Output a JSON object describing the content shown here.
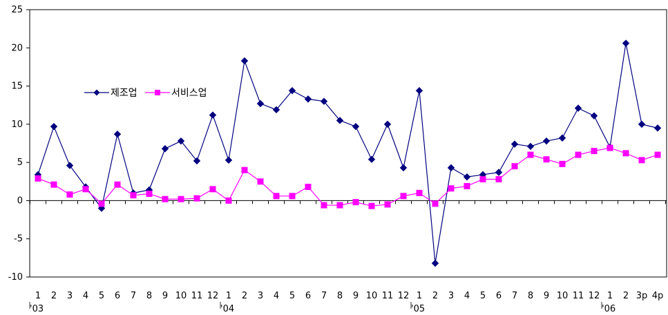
{
  "chart_data": {
    "type": "line",
    "title": "",
    "xlabel": "",
    "ylabel": "",
    "ylim": [
      -10,
      25
    ],
    "yticks": [
      -10,
      -5,
      0,
      5,
      10,
      15,
      20,
      25
    ],
    "categories": [
      "1",
      "2",
      "3",
      "4",
      "5",
      "6",
      "7",
      "8",
      "9",
      "10",
      "11",
      "12",
      "1",
      "2",
      "3",
      "4",
      "5",
      "6",
      "7",
      "8",
      "9",
      "10",
      "11",
      "12",
      "1",
      "2",
      "3",
      "4",
      "5",
      "6",
      "7",
      "8",
      "9",
      "10",
      "11",
      "12",
      "1",
      "2",
      "3p",
      "4p"
    ],
    "year_labels": [
      {
        "index": 0,
        "label": "'03"
      },
      {
        "index": 12,
        "label": "'04"
      },
      {
        "index": 24,
        "label": "'05"
      },
      {
        "index": 36,
        "label": "'06"
      }
    ],
    "legend_position": "upper-left",
    "series": [
      {
        "name": "제조업",
        "color": "#000080",
        "marker": "diamond",
        "values": [
          3.4,
          9.7,
          4.6,
          1.8,
          -1.0,
          8.7,
          1.0,
          1.4,
          6.8,
          7.8,
          5.2,
          11.2,
          5.3,
          18.3,
          12.7,
          11.9,
          14.4,
          13.3,
          13.0,
          10.5,
          9.7,
          5.4,
          10.0,
          4.3,
          14.4,
          -8.2,
          4.3,
          3.1,
          3.4,
          3.7,
          7.4,
          7.1,
          7.8,
          8.2,
          12.1,
          11.1,
          7.0,
          20.6,
          10.0,
          9.5
        ]
      },
      {
        "name": "서비스업",
        "color": "#FF00FF",
        "marker": "square",
        "values": [
          2.9,
          2.1,
          0.8,
          1.5,
          -0.4,
          2.1,
          0.7,
          0.9,
          0.2,
          0.2,
          0.3,
          1.5,
          0.0,
          4.0,
          2.5,
          0.6,
          0.6,
          1.8,
          -0.6,
          -0.6,
          -0.2,
          -0.7,
          -0.5,
          0.6,
          1.0,
          -0.4,
          1.6,
          1.9,
          2.8,
          2.8,
          4.5,
          6.0,
          5.4,
          4.8,
          6.0,
          6.5,
          6.9,
          6.2,
          5.3,
          6.0
        ]
      }
    ]
  }
}
